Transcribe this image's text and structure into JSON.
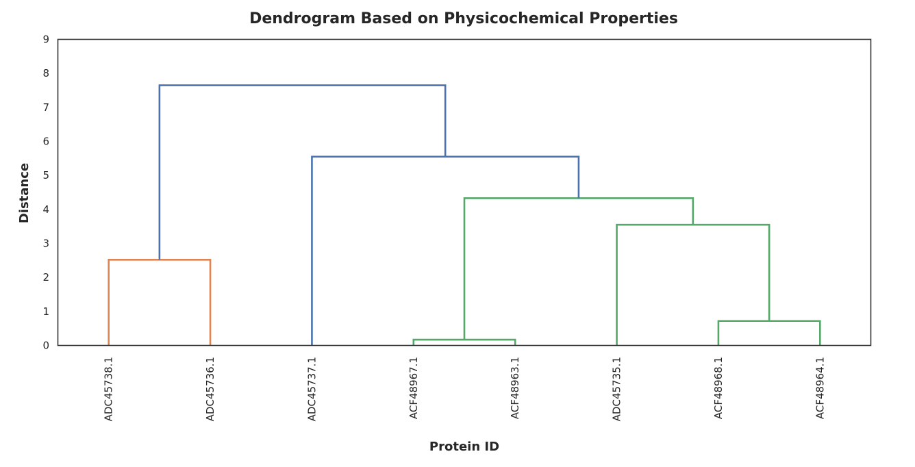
{
  "chart_data": {
    "type": "dendrogram",
    "title": "Dendrogram Based on Physicochemical Properties",
    "xlabel": "Protein ID",
    "ylabel": "Distance",
    "ylim": [
      0,
      9
    ],
    "yticks": [
      "0",
      "1",
      "2",
      "3",
      "4",
      "5",
      "6",
      "7",
      "8",
      "9"
    ],
    "leaves": [
      "ADC45738.1",
      "ADC45736.1",
      "ADC45737.1",
      "ACF48967.1",
      "ACF48963.1",
      "ADC45735.1",
      "ACF48968.1",
      "ACF48964.1"
    ],
    "links": [
      {
        "left": "ACF48967.1",
        "right": "ACF48963.1",
        "height": 0.17,
        "color": "#55a868"
      },
      {
        "left": "ACF48968.1",
        "right": "ACF48964.1",
        "height": 0.72,
        "color": "#55a868"
      },
      {
        "left": "ADC45738.1",
        "right": "ADC45736.1",
        "height": 2.52,
        "color": "#dd8452"
      },
      {
        "left": "ADC45735.1",
        "right": "cluster(ACF48968.1, ACF48964.1)",
        "height": 3.55,
        "color": "#55a868"
      },
      {
        "left": "cluster(ACF48967.1, ACF48963.1)",
        "right": "cluster(ADC45735.1, ACF48968.1, ACF48964.1)",
        "height": 4.33,
        "color": "#55a868"
      },
      {
        "left": "ADC45737.1",
        "right": "cluster(ACF48967.1 … ACF48964.1)",
        "height": 5.55,
        "color": "#4c72b0"
      },
      {
        "left": "cluster(ADC45738.1, ADC45736.1)",
        "right": "cluster(ADC45737.1 … ACF48964.1)",
        "height": 7.65,
        "color": "#4c72b0"
      }
    ],
    "grid": false,
    "colors": {
      "above_threshold": "#4c72b0",
      "cluster_1": "#dd8452",
      "cluster_2": "#55a868"
    }
  }
}
